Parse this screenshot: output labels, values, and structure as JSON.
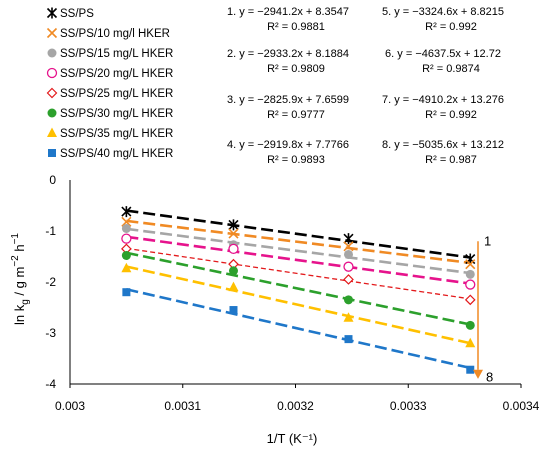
{
  "chart_data": {
    "type": "scatter",
    "xlabel": "1/T (K⁻¹)",
    "ylabel_main": "ln k",
    "ylabel_sub": "g",
    "ylabel_rest": " / g m",
    "ylabel_sup1": "−2",
    "ylabel_mid": " h",
    "ylabel_sup2": "−1",
    "xlim": [
      0.003,
      0.0034
    ],
    "ylim": [
      -4,
      0
    ],
    "xticks": [
      "0.003",
      "0.0031",
      "0.0032",
      "0.0033",
      "0.0034"
    ],
    "yticks": [
      "0",
      "-1",
      "-2",
      "-3",
      "-4"
    ],
    "x": [
      0.00305,
      0.003145,
      0.003247,
      0.003355
    ],
    "series": [
      {
        "name": "SS/PS",
        "color": "#000000",
        "marker": "star",
        "values": [
          -0.62,
          -0.88,
          -1.15,
          -1.55
        ],
        "slope": -2941.2,
        "intercept": 8.3547,
        "r2": 0.9881,
        "eq": "1. y = −2941.2x + 8.3547",
        "r2_label": "R² = 0.9881"
      },
      {
        "name": "SS/PS/10 mg/l HKER",
        "color": "#f08a24",
        "marker": "x",
        "values": [
          -0.82,
          -1.05,
          -1.3,
          -1.65
        ],
        "slope": -2933.2,
        "intercept": 8.1884,
        "r2": 0.9809,
        "eq": "2. y = −2933.2x + 8.1884",
        "r2_label": "R² = 0.9809"
      },
      {
        "name": "SS/PS/15 mg/L HKER",
        "color": "#a6a6a6",
        "marker": "circle",
        "values": [
          -0.95,
          -1.27,
          -1.46,
          -1.85
        ],
        "slope": -2825.9,
        "intercept": 7.6599,
        "r2": 0.9777,
        "eq": "3. y = −2825.9x + 7.6599",
        "r2_label": "R² = 0.9777"
      },
      {
        "name": "SS/PS/20 mg/L HKER",
        "color": "#e6138c",
        "marker": "circle-open",
        "values": [
          -1.15,
          -1.35,
          -1.7,
          -2.05
        ],
        "slope": -2919.8,
        "intercept": 7.7766,
        "r2": 0.9893,
        "eq": "4. y = −2919.8x + 7.7766",
        "r2_label": "R² = 0.9893"
      },
      {
        "name": "SS/PS/25 mg/L HKER",
        "color": "#e31a1c",
        "marker": "diamond-open",
        "values": [
          -1.35,
          -1.65,
          -1.95,
          -2.35
        ],
        "slope": -3324.6,
        "intercept": 8.8215,
        "r2": 0.992,
        "eq": "5. y = −3324.6x + 8.8215",
        "r2_label": "R² = 0.992"
      },
      {
        "name": "SS/PS/30 mg/L HKER",
        "color": "#2ca02c",
        "marker": "circle",
        "values": [
          -1.48,
          -1.78,
          -2.35,
          -2.85
        ],
        "slope": -4637.5,
        "intercept": 12.72,
        "r2": 0.9874,
        "eq": "6. y = −4637.5x + 12.72",
        "r2_label": "R² = 0.9874"
      },
      {
        "name": "SS/PS/35 mg/L HKER",
        "color": "#ffc000",
        "marker": "triangle",
        "values": [
          -1.73,
          -2.1,
          -2.7,
          -3.2
        ],
        "slope": -4910.2,
        "intercept": 13.276,
        "r2": 0.992,
        "eq": "7. y = −4910.2x + 13.276",
        "r2_label": "R² = 0.992"
      },
      {
        "name": "SS/PS/40 mg/L HKER",
        "color": "#1f77c9",
        "marker": "square",
        "values": [
          -2.2,
          -2.55,
          -3.12,
          -3.72
        ],
        "slope": -5035.6,
        "intercept": 13.212,
        "r2": 0.987,
        "eq": "8. y = −5035.6x + 13.212",
        "r2_label": "R² = 0.987"
      }
    ],
    "annotations": {
      "arrow_color": "#f08a24",
      "top_label": "1",
      "bottom_label": "8"
    }
  }
}
